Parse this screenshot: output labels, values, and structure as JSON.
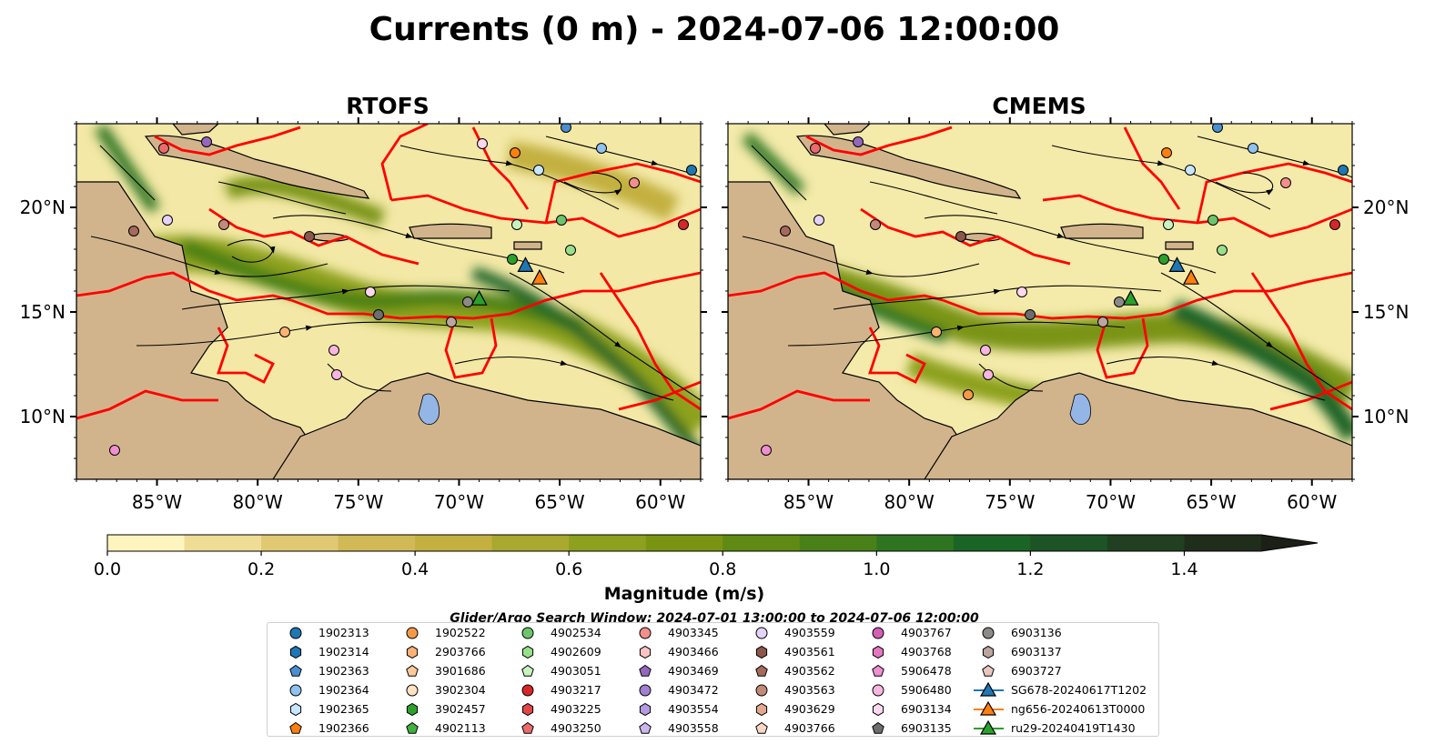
{
  "title": "Currents (0 m) - 2024-07-06 12:00:00",
  "chart_data": [
    {
      "type": "heatmap",
      "subtitle": "RTOFS",
      "xlim": [
        -89,
        -58
      ],
      "ylim": [
        7,
        24
      ],
      "x_ticks": [
        -85,
        -80,
        -75,
        -70,
        -65,
        -60
      ],
      "x_tick_labels": [
        "85°W",
        "80°W",
        "75°W",
        "70°W",
        "65°W",
        "60°W"
      ],
      "y_ticks": [
        10,
        15,
        20
      ],
      "y_tick_labels": [
        "10°N",
        "15°N",
        "20°N"
      ],
      "gliders": [
        {
          "name": "SG678-20240617T1202",
          "lon": -66.7,
          "lat": 17.2,
          "color": "#1f77b4"
        },
        {
          "name": "ng656-20240613T0000",
          "lon": -66.0,
          "lat": 16.6,
          "color": "#ff7f0e"
        },
        {
          "name": "ru29-20240419T1430",
          "lon": -69.0,
          "lat": 15.6,
          "color": "#2ca02c"
        }
      ]
    },
    {
      "type": "heatmap",
      "subtitle": "CMEMS",
      "xlim": [
        -89,
        -58
      ],
      "ylim": [
        7,
        24
      ],
      "x_ticks": [
        -85,
        -80,
        -75,
        -70,
        -65,
        -60
      ],
      "x_tick_labels": [
        "85°W",
        "80°W",
        "75°W",
        "70°W",
        "65°W",
        "60°W"
      ],
      "y_ticks": [
        10,
        15,
        20
      ],
      "y_tick_labels": [
        "10°N",
        "15°N",
        "20°N"
      ],
      "gliders": [
        {
          "name": "SG678-20240617T1202",
          "lon": -66.7,
          "lat": 17.2,
          "color": "#1f77b4"
        },
        {
          "name": "ng656-20240613T0000",
          "lon": -66.0,
          "lat": 16.6,
          "color": "#ff7f0e"
        },
        {
          "name": "ru29-20240419T1430",
          "lon": -69.0,
          "lat": 15.6,
          "color": "#2ca02c"
        }
      ]
    }
  ],
  "colorbar": {
    "label": "Magnitude (m/s)",
    "min": 0.0,
    "max": 1.5,
    "step": 0.1,
    "extend": "max",
    "ticks": [
      0.0,
      0.2,
      0.4,
      0.6,
      0.8,
      1.0,
      1.2,
      1.4
    ],
    "tick_labels": [
      "0.0",
      "0.2",
      "0.4",
      "0.6",
      "0.8",
      "1.0",
      "1.2",
      "1.4"
    ],
    "colors": [
      "#fdf5bd",
      "#efdc95",
      "#e1c873",
      "#d1b956",
      "#c3b040",
      "#a9a82f",
      "#8da11e",
      "#7a9412",
      "#5f8a14",
      "#498018",
      "#2f7421",
      "#1a6426",
      "#1d5426",
      "#213f21",
      "#1f2d1a",
      "#1b1f15"
    ]
  },
  "legend": {
    "title": "Glider/Argo Search Window: 2024-07-01 13:00:00 to 2024-07-06 12:00:00",
    "entries": [
      {
        "label": "1902313",
        "marker": "circle",
        "color": "#1f77b4"
      },
      {
        "label": "1902314",
        "marker": "hexagon",
        "color": "#1f77b4"
      },
      {
        "label": "1902363",
        "marker": "pentagon",
        "color": "#4a8fd1"
      },
      {
        "label": "1902364",
        "marker": "circle",
        "color": "#8fc2ee"
      },
      {
        "label": "1902365",
        "marker": "hexagon",
        "color": "#c8e6ff"
      },
      {
        "label": "1902366",
        "marker": "pentagon",
        "color": "#ff7f0e"
      },
      {
        "label": "1902522",
        "marker": "circle",
        "color": "#f49a47"
      },
      {
        "label": "2903766",
        "marker": "hexagon",
        "color": "#fbb274"
      },
      {
        "label": "3901686",
        "marker": "pentagon",
        "color": "#fdc99a"
      },
      {
        "label": "3902304",
        "marker": "circle",
        "color": "#ffe2c2"
      },
      {
        "label": "3902457",
        "marker": "hexagon",
        "color": "#2ca02c"
      },
      {
        "label": "4902113",
        "marker": "pentagon",
        "color": "#3fb03f"
      },
      {
        "label": "4902534",
        "marker": "circle",
        "color": "#6cc56c"
      },
      {
        "label": "4902609",
        "marker": "hexagon",
        "color": "#98df8a"
      },
      {
        "label": "4903051",
        "marker": "pentagon",
        "color": "#c9f2c0"
      },
      {
        "label": "4903217",
        "marker": "circle",
        "color": "#d62728"
      },
      {
        "label": "4903225",
        "marker": "hexagon",
        "color": "#e0474a"
      },
      {
        "label": "4903250",
        "marker": "pentagon",
        "color": "#eb6b6d"
      },
      {
        "label": "4903345",
        "marker": "circle",
        "color": "#f28f8d"
      },
      {
        "label": "4903466",
        "marker": "hexagon",
        "color": "#fbc4c2"
      },
      {
        "label": "4903469",
        "marker": "pentagon",
        "color": "#9467bd"
      },
      {
        "label": "4903472",
        "marker": "circle",
        "color": "#a27fd0"
      },
      {
        "label": "4903554",
        "marker": "hexagon",
        "color": "#b59ae0"
      },
      {
        "label": "4903558",
        "marker": "pentagon",
        "color": "#cbb6ee"
      },
      {
        "label": "4903559",
        "marker": "circle",
        "color": "#e5d4fa"
      },
      {
        "label": "4903561",
        "marker": "hexagon",
        "color": "#8c564b"
      },
      {
        "label": "4903562",
        "marker": "pentagon",
        "color": "#a56a5d"
      },
      {
        "label": "4903563",
        "marker": "circle",
        "color": "#c28a78"
      },
      {
        "label": "4903629",
        "marker": "hexagon",
        "color": "#e2a98f"
      },
      {
        "label": "4903766",
        "marker": "pentagon",
        "color": "#fbd6c6"
      },
      {
        "label": "4903767",
        "marker": "circle",
        "color": "#d35fb7"
      },
      {
        "label": "4903768",
        "marker": "hexagon",
        "color": "#e377c2"
      },
      {
        "label": "5906478",
        "marker": "pentagon",
        "color": "#ef8fd2"
      },
      {
        "label": "5906480",
        "marker": "circle",
        "color": "#f7b6e0"
      },
      {
        "label": "6903134",
        "marker": "hexagon",
        "color": "#fbd8f0"
      },
      {
        "label": "6903135",
        "marker": "pentagon",
        "color": "#6d6d6d"
      },
      {
        "label": "6903136",
        "marker": "circle",
        "color": "#8c8a88"
      },
      {
        "label": "6903137",
        "marker": "hexagon",
        "color": "#bba59e"
      },
      {
        "label": "6903727",
        "marker": "pentagon",
        "color": "#e8c6bd"
      },
      {
        "label": "SG678-20240617T1202",
        "marker": "triangle-line",
        "color": "#1f77b4"
      },
      {
        "label": "ng656-20240613T0000",
        "marker": "triangle-line",
        "color": "#ff7f0e"
      },
      {
        "label": "ru29-20240419T1430",
        "marker": "triangle-line",
        "color": "#2ca02c"
      }
    ]
  },
  "map_colors": {
    "land": "#d2b48c",
    "ocean_low": "#fdf5bd",
    "boundaries": "#ff0000",
    "rivers": "#a7bfe0"
  }
}
